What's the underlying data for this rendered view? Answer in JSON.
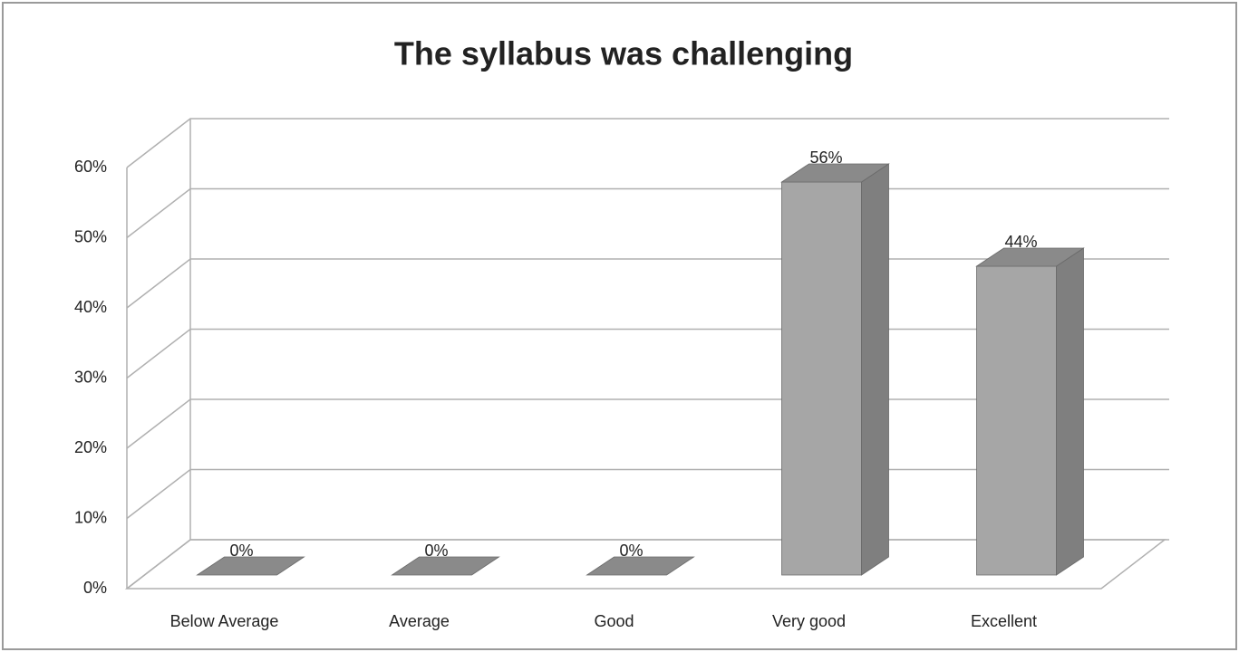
{
  "chart_data": {
    "type": "bar3d",
    "title": "The syllabus was challenging",
    "categories": [
      "Below Average",
      "Average",
      "Good",
      "Very good",
      "Excellent"
    ],
    "values": [
      0,
      0,
      0,
      56,
      44
    ],
    "value_labels": [
      "0%",
      "0%",
      "0%",
      "56%",
      "44%"
    ],
    "color": "#a6a6a6",
    "ylim": [
      0,
      60
    ],
    "yticks": [
      {
        "value": 0,
        "label": "0%"
      },
      {
        "value": 10,
        "label": "10%"
      },
      {
        "value": 20,
        "label": "20%"
      },
      {
        "value": 30,
        "label": "30%"
      },
      {
        "value": 40,
        "label": "40%"
      },
      {
        "value": 50,
        "label": "50%"
      },
      {
        "value": 60,
        "label": "60%"
      }
    ],
    "grid": true
  }
}
